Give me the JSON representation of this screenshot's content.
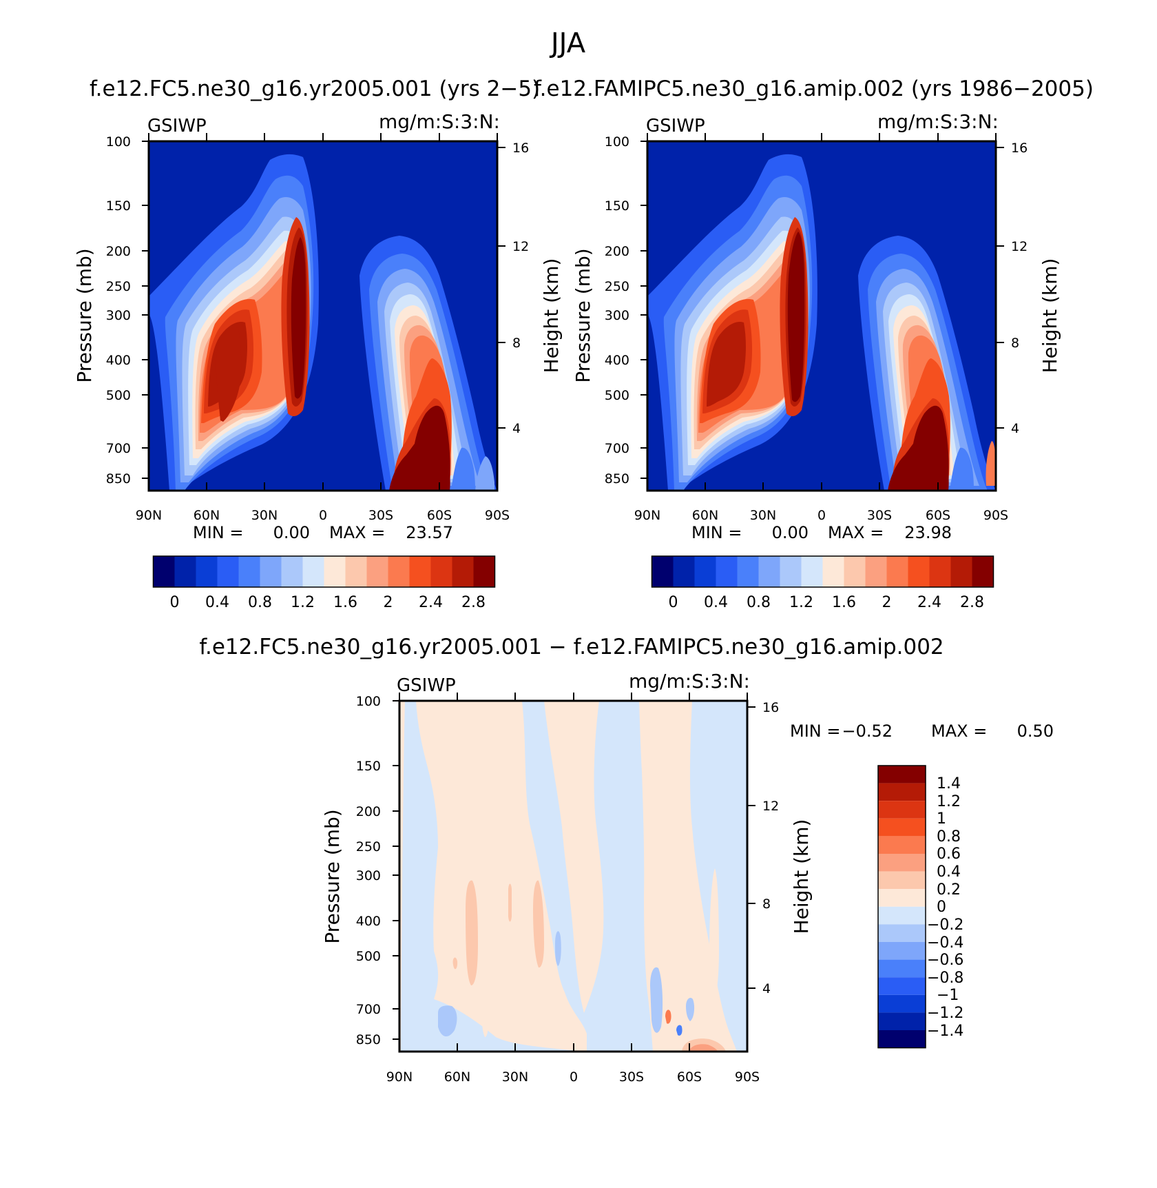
{
  "figure_title": "JJA",
  "chart_data": [
    {
      "type": "heatmap",
      "id": "panel-left",
      "title": "f.e12.FC5.ne30_g16.yr2005.001 (yrs 2−5)",
      "left_label": "GSIWP",
      "right_label": "mg/m:S:3:N:",
      "ylabel": "Pressure (mb)",
      "ylabel_right": "Height (km)",
      "x_ticks": [
        "90N",
        "60N",
        "30N",
        "0",
        "30S",
        "60S",
        "90S"
      ],
      "y_ticks": [
        "100",
        "150",
        "200",
        "250",
        "300",
        "400",
        "500",
        "700",
        "850"
      ],
      "y_ticks_right": [
        "16",
        "12",
        "8",
        "4"
      ],
      "min_label": "MIN =",
      "min_value": "0.00",
      "max_label": "MAX =",
      "max_value": "23.57",
      "colorbar_labels": [
        "0",
        "0.4",
        "0.8",
        "1.2",
        "1.6",
        "2",
        "2.4",
        "2.8"
      ]
    },
    {
      "type": "heatmap",
      "id": "panel-right",
      "title": "f.e12.FAMIPC5.ne30_g16.amip.002 (yrs 1986−2005)",
      "left_label": "GSIWP",
      "right_label": "mg/m:S:3:N:",
      "ylabel": "Pressure (mb)",
      "ylabel_right": "Height (km)",
      "x_ticks": [
        "90N",
        "60N",
        "30N",
        "0",
        "30S",
        "60S",
        "90S"
      ],
      "y_ticks": [
        "100",
        "150",
        "200",
        "250",
        "300",
        "400",
        "500",
        "700",
        "850"
      ],
      "y_ticks_right": [
        "16",
        "12",
        "8",
        "4"
      ],
      "min_label": "MIN =",
      "min_value": "0.00",
      "max_label": "MAX =",
      "max_value": "23.98",
      "colorbar_labels": [
        "0",
        "0.4",
        "0.8",
        "1.2",
        "1.6",
        "2",
        "2.4",
        "2.8"
      ]
    },
    {
      "type": "heatmap",
      "id": "panel-diff",
      "title": "f.e12.FC5.ne30_g16.yr2005.001 − f.e12.FAMIPC5.ne30_g16.amip.002",
      "left_label": "GSIWP",
      "right_label": "mg/m:S:3:N:",
      "ylabel": "Pressure (mb)",
      "ylabel_right": "Height (km)",
      "x_ticks": [
        "90N",
        "60N",
        "30N",
        "0",
        "30S",
        "60S",
        "90S"
      ],
      "y_ticks": [
        "100",
        "150",
        "200",
        "250",
        "300",
        "400",
        "500",
        "700",
        "850"
      ],
      "y_ticks_right": [
        "16",
        "12",
        "8",
        "4"
      ],
      "min_label": "MIN =",
      "min_value": "−0.52",
      "max_label": "MAX =",
      "max_value": "0.50",
      "colorbar_labels": [
        "1.4",
        "1.2",
        "1",
        "0.8",
        "0.6",
        "0.4",
        "0.2",
        "0",
        "−0.2",
        "−0.4",
        "−0.6",
        "−0.8",
        "−1",
        "−1.2",
        "−1.4"
      ]
    }
  ],
  "palette": [
    "#00006e",
    "#0022aa",
    "#0a3ed6",
    "#2a5df5",
    "#4a80fa",
    "#7ea6fa",
    "#abc8fa",
    "#d4e6fb",
    "#fde8d8",
    "#fcc8ad",
    "#fba080",
    "#fb7a4f",
    "#f5501f",
    "#dc3512",
    "#b41b06",
    "#840000"
  ],
  "palette_diff": [
    "#840000",
    "#b41b06",
    "#dc3512",
    "#f5501f",
    "#fb7a4f",
    "#fba080",
    "#fcc8ad",
    "#fde8d8",
    "#d4e6fb",
    "#abc8fa",
    "#7ea6fa",
    "#4a80fa",
    "#2a5df5",
    "#0a3ed6",
    "#0022aa",
    "#00006e"
  ]
}
